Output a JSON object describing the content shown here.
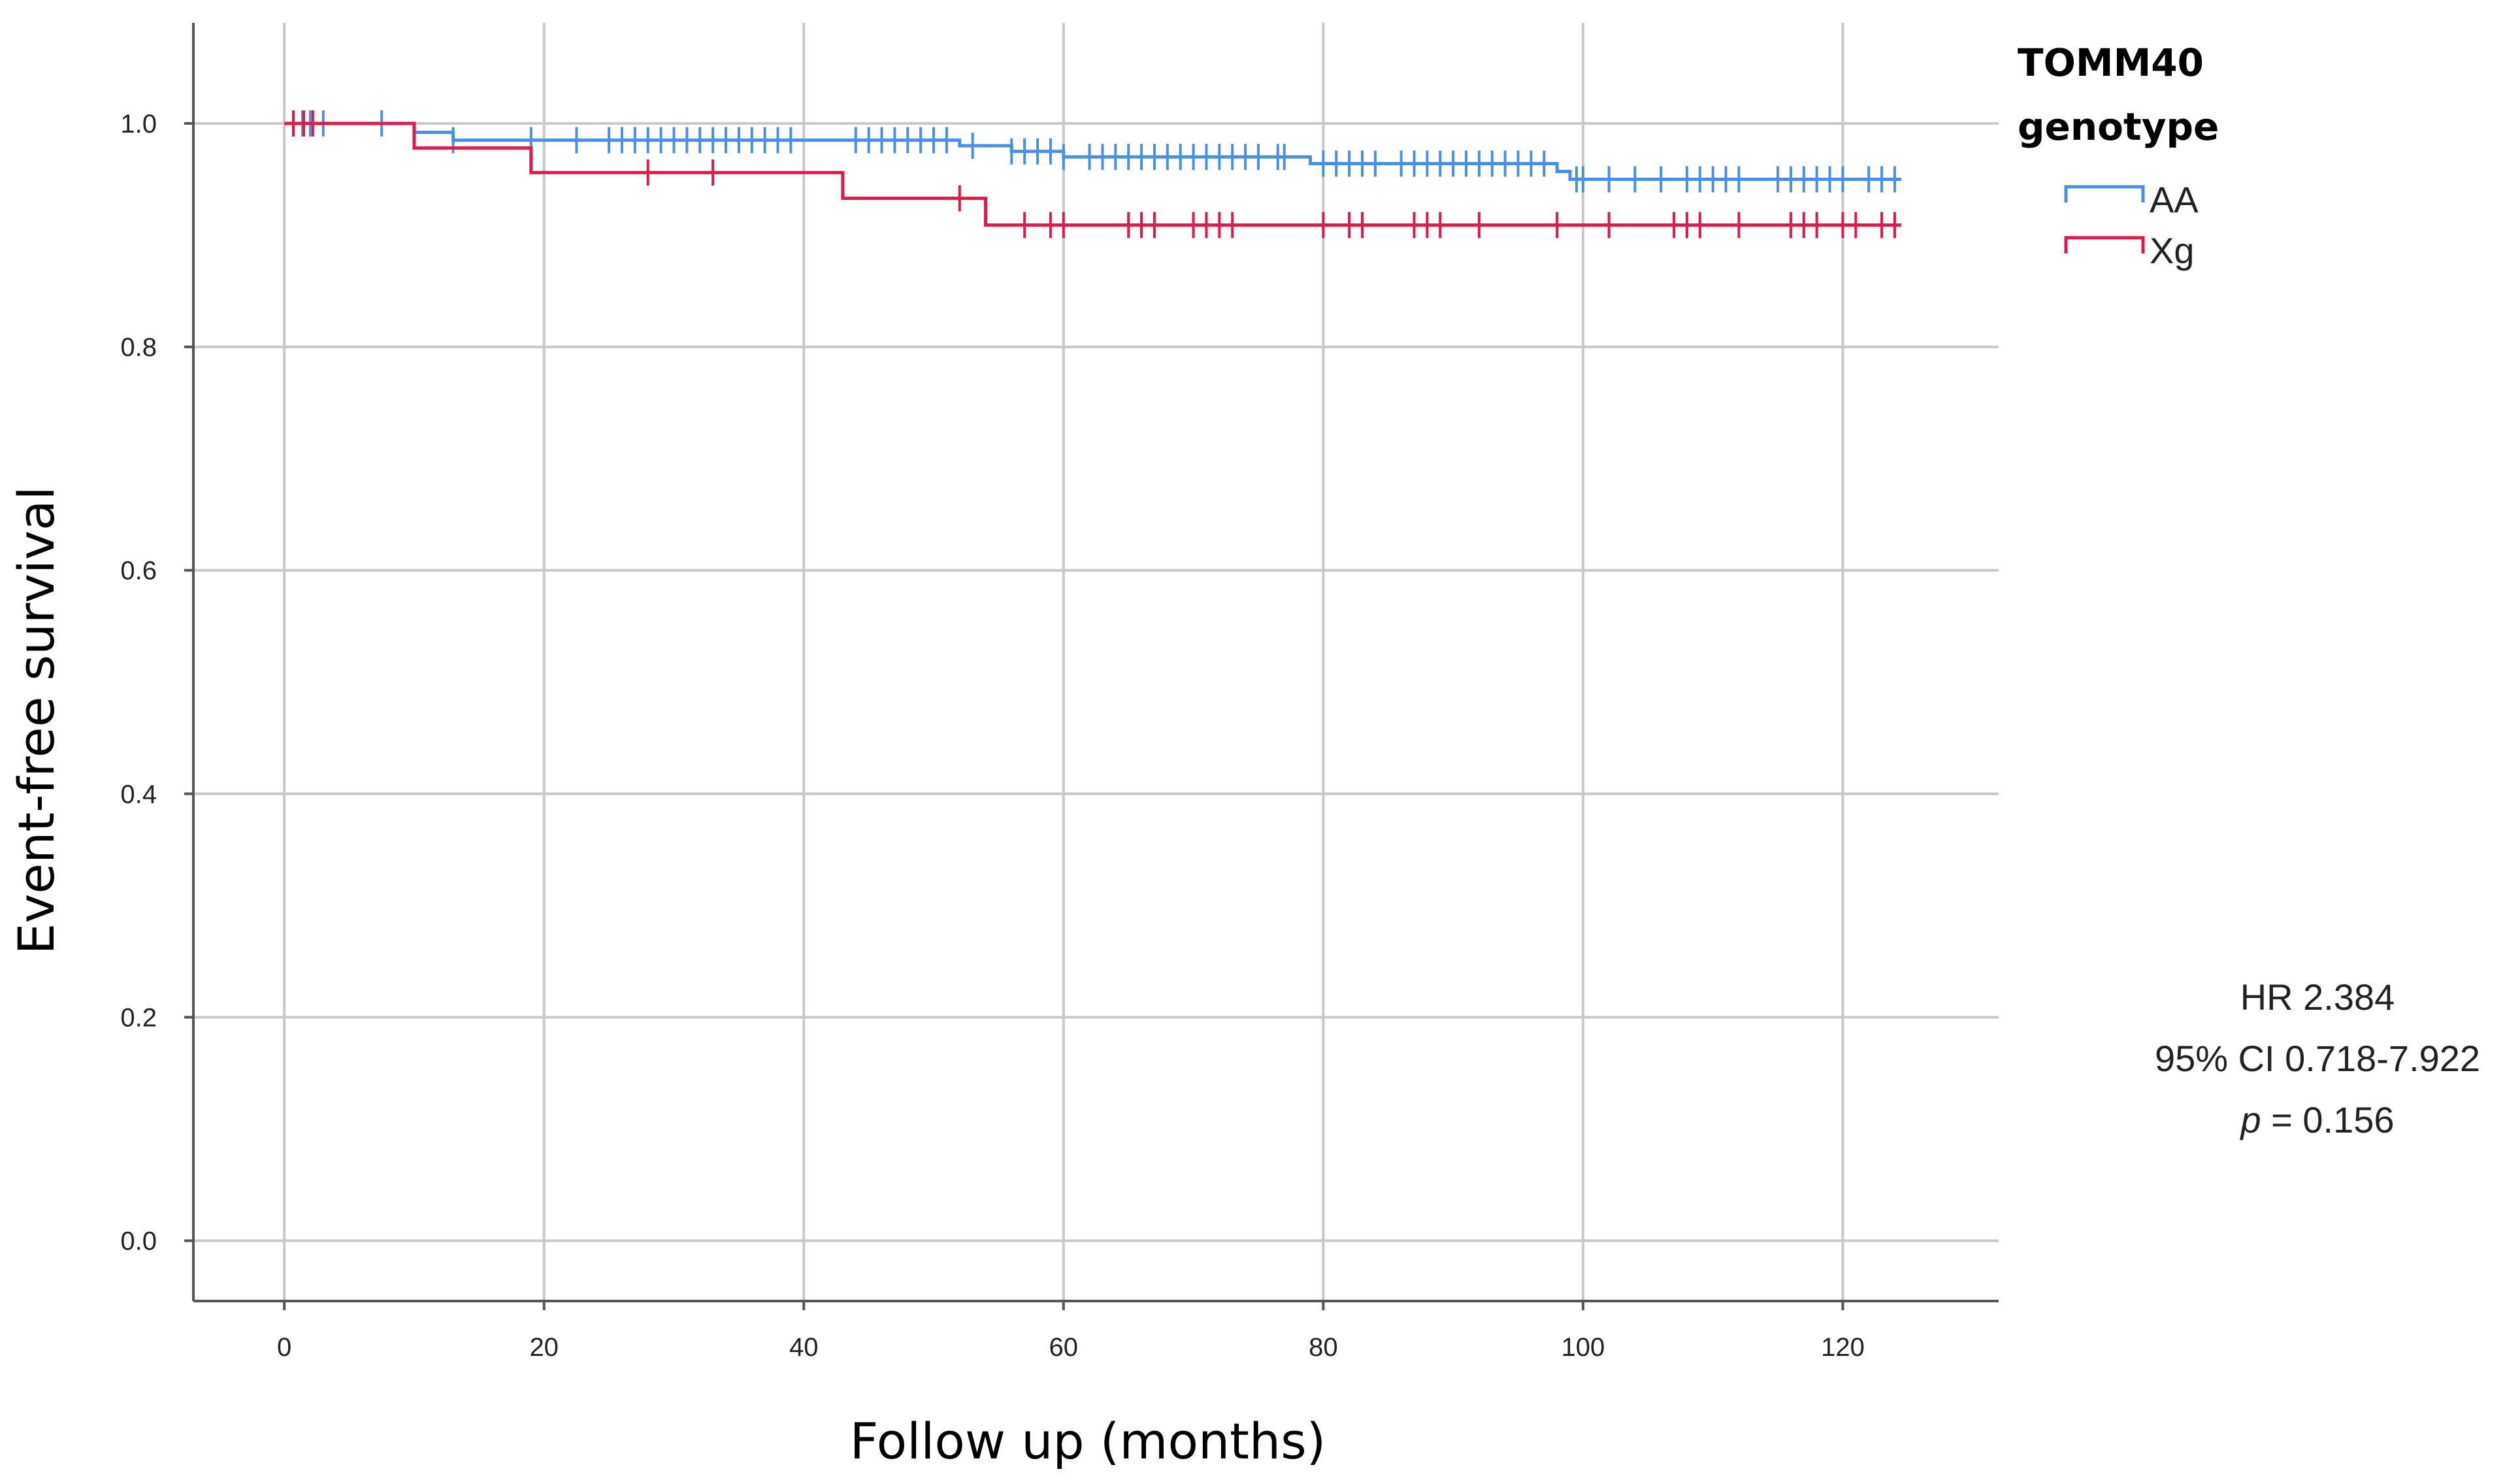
{
  "chart_data": {
    "type": "line",
    "subtype": "kaplan-meier",
    "title": "",
    "xlabel": "Follow up (months)",
    "ylabel": "Event-free survival",
    "xlim": [
      -7,
      132
    ],
    "ylim": [
      -0.054,
      1.09
    ],
    "xticks": [
      0,
      20,
      40,
      60,
      80,
      100,
      120
    ],
    "yticks": [
      0.0,
      0.2,
      0.4,
      0.6,
      0.8,
      1.0
    ],
    "xtick_labels": [
      "0",
      "20",
      "40",
      "60",
      "80",
      "100",
      "120"
    ],
    "ytick_labels": [
      "0.0",
      "0.2",
      "0.4",
      "0.6",
      "0.8",
      "1.0"
    ],
    "grid": true,
    "legend": {
      "title_line1": "TOMM40",
      "title_line2": "genotype",
      "placement": "top-right-outside"
    },
    "series": [
      {
        "name": "AA",
        "color": "#4a90e2",
        "steps": [
          [
            0,
            1.0
          ],
          [
            10,
            0.992
          ],
          [
            13,
            0.985
          ],
          [
            52,
            0.98
          ],
          [
            56,
            0.975
          ],
          [
            60,
            0.97
          ],
          [
            79,
            0.964
          ],
          [
            98,
            0.957
          ],
          [
            99,
            0.95
          ],
          [
            124.5,
            0.95
          ]
        ],
        "censored": [
          0.7,
          1.4,
          2,
          3,
          7.5,
          13,
          19,
          22.5,
          25,
          26,
          27,
          28,
          29,
          30,
          31,
          32,
          33,
          34,
          35,
          36,
          37,
          38,
          39,
          44,
          45,
          46,
          47,
          48,
          49,
          50,
          51,
          53,
          56,
          57,
          58,
          59,
          60,
          62,
          63,
          64,
          65,
          66,
          67,
          68,
          69,
          70,
          71,
          72,
          73,
          74,
          75,
          76.5,
          77,
          80,
          81,
          82,
          83,
          84,
          86,
          87,
          88,
          89,
          90,
          91,
          92,
          93,
          94,
          95,
          96,
          97,
          99.5,
          100,
          102,
          104,
          106,
          108,
          109,
          110,
          111,
          112,
          115,
          116,
          117,
          118,
          119,
          120,
          122,
          123,
          124
        ]
      },
      {
        "name": "Xg",
        "color": "#e0194b",
        "steps": [
          [
            0,
            1.0
          ],
          [
            10,
            0.978
          ],
          [
            19,
            0.956
          ],
          [
            43,
            0.933
          ],
          [
            54,
            0.909
          ],
          [
            124.5,
            0.909
          ]
        ],
        "censored": [
          0.7,
          1.5,
          2.2,
          28,
          33,
          52,
          57,
          59,
          60,
          65,
          66,
          67,
          70,
          71,
          72,
          73,
          80,
          82,
          83,
          87,
          88,
          89,
          92,
          98,
          102,
          107,
          108,
          109,
          112,
          116,
          117,
          118,
          120,
          121,
          123,
          124
        ]
      }
    ],
    "annotations": {
      "line1": "HR 2.384",
      "line2": "95% CI 0.718-7.922",
      "line3_var": "p",
      "line3_rest": " = 0.156"
    }
  }
}
